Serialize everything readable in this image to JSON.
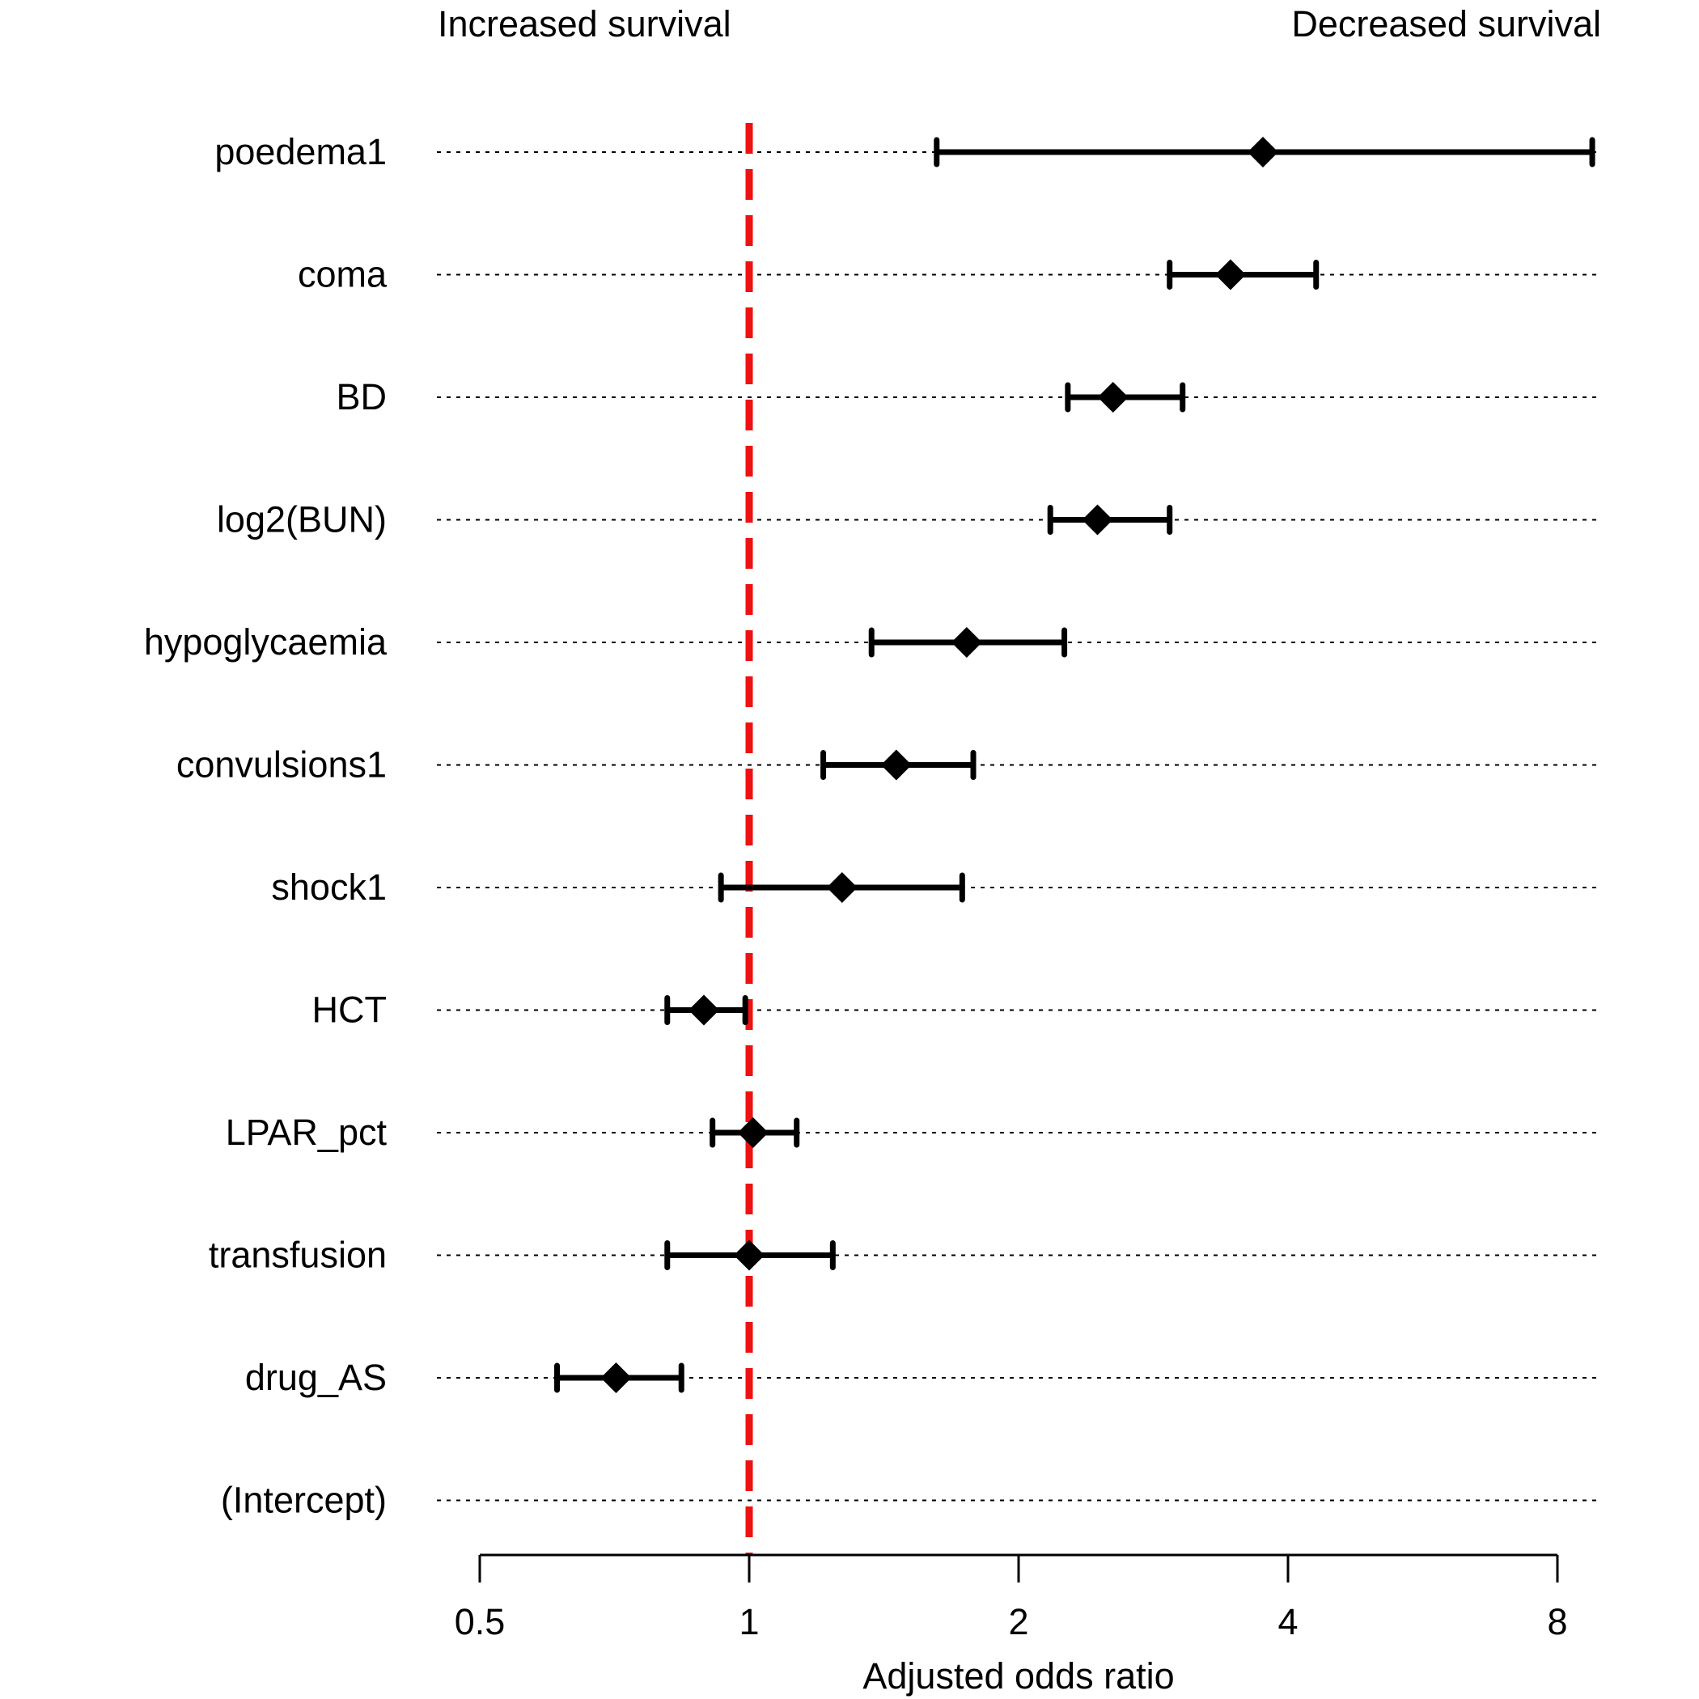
{
  "colors": {
    "text": "#000000",
    "marker": "#000000",
    "reference_line": "#ee1111",
    "guide": "#000000",
    "background": "#ffffff"
  },
  "chart_data": {
    "type": "forest",
    "scale": "log2",
    "xlabel": "Adjusted odds ratio",
    "xlim": [
      0.5,
      8.7
    ],
    "xticks": [
      0.5,
      1,
      2,
      4,
      8
    ],
    "xtick_labels": [
      "0.5",
      "1",
      "2",
      "4",
      "8"
    ],
    "reference_value": 1,
    "annotations": {
      "left": "Increased survival",
      "right": "Decreased survival"
    },
    "marker": "diamond",
    "rows": [
      {
        "label": "poedema1",
        "estimate": 3.75,
        "lower": 1.62,
        "upper": 8.75
      },
      {
        "label": "coma",
        "estimate": 3.45,
        "lower": 2.95,
        "upper": 4.3
      },
      {
        "label": "BD",
        "estimate": 2.55,
        "lower": 2.27,
        "upper": 3.05
      },
      {
        "label": "log2(BUN)",
        "estimate": 2.45,
        "lower": 2.17,
        "upper": 2.95
      },
      {
        "label": "hypoglycaemia",
        "estimate": 1.75,
        "lower": 1.37,
        "upper": 2.25
      },
      {
        "label": "convulsions1",
        "estimate": 1.46,
        "lower": 1.21,
        "upper": 1.78
      },
      {
        "label": "shock1",
        "estimate": 1.27,
        "lower": 0.93,
        "upper": 1.73
      },
      {
        "label": "HCT",
        "estimate": 0.89,
        "lower": 0.81,
        "upper": 0.99
      },
      {
        "label": "LPAR_pct",
        "estimate": 1.01,
        "lower": 0.91,
        "upper": 1.13
      },
      {
        "label": "transfusion",
        "estimate": 1.0,
        "lower": 0.81,
        "upper": 1.24
      },
      {
        "label": "drug_AS",
        "estimate": 0.71,
        "lower": 0.61,
        "upper": 0.84
      },
      {
        "label": "(Intercept)",
        "estimate": null,
        "lower": null,
        "upper": null
      }
    ]
  }
}
